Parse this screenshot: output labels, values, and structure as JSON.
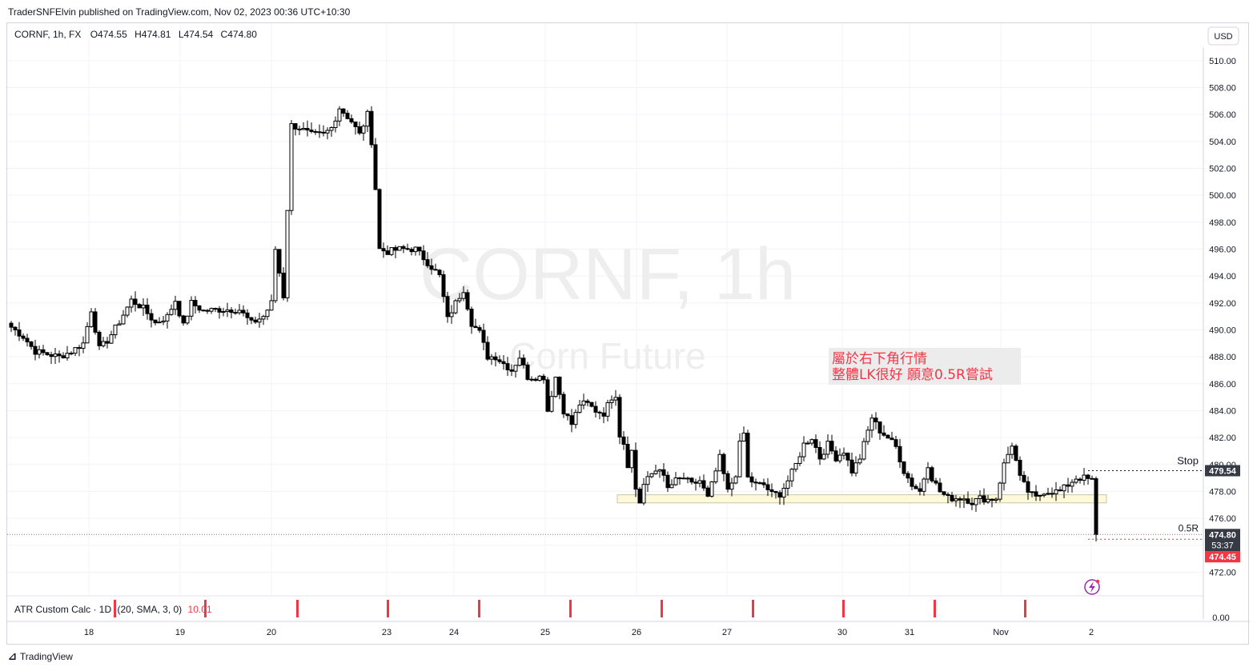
{
  "header": {
    "published": "TraderSNFElvin published on TradingView.com, Nov 02, 2023 00:36 UTC+10:30"
  },
  "footer": {
    "brand": "TradingView"
  },
  "legend": {
    "symbol": "CORNF, 1h, FX",
    "o_label": "O",
    "o": "474.55",
    "h_label": "H",
    "h": "474.81",
    "l_label": "L",
    "l": "474.54",
    "c_label": "C",
    "c": "474.80"
  },
  "watermark": {
    "title": "CORNF, 1h",
    "subtitle": "Corn Future"
  },
  "currency_button": "USD",
  "annotations": {
    "note_line1": "屬於右下角行情",
    "note_line2": "整體LK很好 願意0.5R嘗試",
    "stop_label": "Stop",
    "half_r_label": "0.5R"
  },
  "price_tags": {
    "stop": "479.54",
    "last": "474.80",
    "countdown": "53:37",
    "target": "474.45"
  },
  "indicator": {
    "name": "ATR Custom Calc · 1D",
    "params": "(20, SMA, 3, 0)",
    "value": "10.01",
    "axis_label": "0.00"
  },
  "colors": {
    "accent_red": "#f23645",
    "candle": "#000000",
    "zone_fill": "#fff9d9",
    "zone_border": "#c9c5a6",
    "note_text": "#f23645",
    "note_bg": "#ececec",
    "grid": "#f0f3fa",
    "watermark": "#eeeeee",
    "tag_dark": "#363a45",
    "flash_icon": "#9c27b0"
  },
  "chart_data": {
    "type": "candlestick",
    "symbol": "CORNF",
    "interval": "1h",
    "ylim": [
      470.6,
      511.0
    ],
    "y_ticks": [
      472,
      474,
      476,
      478,
      480,
      482,
      484,
      486,
      488,
      490,
      492,
      494,
      496,
      498,
      500,
      502,
      504,
      506,
      508,
      510
    ],
    "x_ticks": [
      "18",
      "19",
      "20",
      "23",
      "24",
      "25",
      "26",
      "27",
      "30",
      "31",
      "Nov",
      "2"
    ],
    "series": [
      {
        "name": "CORNF",
        "anchors": [
          [
            0,
            490.2
          ],
          [
            3,
            489.5
          ],
          [
            6,
            488.4
          ],
          [
            9,
            488.2
          ],
          [
            12,
            488.0
          ],
          [
            15,
            488.4
          ],
          [
            18,
            489.0
          ],
          [
            20,
            491.5
          ],
          [
            22,
            488.6
          ],
          [
            24,
            489.2
          ],
          [
            27,
            490.6
          ],
          [
            30,
            492.2
          ],
          [
            33,
            491.6
          ],
          [
            36,
            490.5
          ],
          [
            39,
            491.0
          ],
          [
            41,
            492.2
          ],
          [
            43,
            490.3
          ],
          [
            45,
            492.0
          ],
          [
            48,
            491.4
          ],
          [
            51,
            491.5
          ],
          [
            54,
            491.5
          ],
          [
            57,
            491.5
          ],
          [
            60,
            490.5
          ],
          [
            63,
            491.0
          ],
          [
            65,
            492.0
          ],
          [
            66,
            496.0
          ],
          [
            68,
            492.5
          ],
          [
            69,
            499.0
          ],
          [
            70,
            505.2
          ],
          [
            72,
            505.0
          ],
          [
            75,
            504.5
          ],
          [
            78,
            504.5
          ],
          [
            80,
            505.0
          ],
          [
            82,
            506.5
          ],
          [
            85,
            505.5
          ],
          [
            87,
            504.5
          ],
          [
            89,
            506.0
          ],
          [
            90,
            504.0
          ],
          [
            91,
            500.5
          ],
          [
            92,
            496.0
          ],
          [
            94,
            495.8
          ],
          [
            97,
            496.0
          ],
          [
            99,
            496.0
          ],
          [
            101,
            496.0
          ],
          [
            104,
            495.0
          ],
          [
            107,
            494.0
          ],
          [
            109,
            490.8
          ],
          [
            111,
            492.0
          ],
          [
            113,
            493.0
          ],
          [
            115,
            490.5
          ],
          [
            117,
            489.8
          ],
          [
            119,
            488.0
          ],
          [
            121,
            488.0
          ],
          [
            123,
            487.5
          ],
          [
            125,
            487.0
          ],
          [
            127,
            488.0
          ],
          [
            129,
            486.5
          ],
          [
            131,
            486.5
          ],
          [
            133,
            486.5
          ],
          [
            134,
            484.0
          ],
          [
            136,
            486.5
          ],
          [
            138,
            484.0
          ],
          [
            140,
            483.0
          ],
          [
            142,
            484.5
          ],
          [
            144,
            484.5
          ],
          [
            146,
            484.0
          ],
          [
            148,
            483.8
          ],
          [
            150,
            485.0
          ],
          [
            151,
            485.2
          ],
          [
            152,
            482.2
          ],
          [
            153,
            481.6
          ],
          [
            154,
            480.0
          ],
          [
            155,
            481.0
          ],
          [
            156,
            478.2
          ],
          [
            157,
            477.2
          ],
          [
            158,
            478.5
          ],
          [
            160,
            479.3
          ],
          [
            162,
            479.8
          ],
          [
            164,
            478.2
          ],
          [
            166,
            478.8
          ],
          [
            168,
            479.0
          ],
          [
            170,
            478.5
          ],
          [
            172,
            478.8
          ],
          [
            174,
            477.5
          ],
          [
            176,
            479.5
          ],
          [
            177,
            480.5
          ],
          [
            179,
            478.0
          ],
          [
            181,
            479.3
          ],
          [
            182,
            481.5
          ],
          [
            183,
            482.3
          ],
          [
            184,
            479.0
          ],
          [
            186,
            478.5
          ],
          [
            188,
            478.5
          ],
          [
            190,
            477.8
          ],
          [
            192,
            477.8
          ],
          [
            194,
            478.8
          ],
          [
            196,
            480.0
          ],
          [
            198,
            481.5
          ],
          [
            200,
            482.0
          ],
          [
            202,
            480.5
          ],
          [
            204,
            481.5
          ],
          [
            206,
            480.5
          ],
          [
            208,
            481.0
          ],
          [
            210,
            479.5
          ],
          [
            212,
            480.5
          ],
          [
            214,
            482.5
          ],
          [
            215,
            483.5
          ],
          [
            217,
            482.5
          ],
          [
            219,
            482.0
          ],
          [
            221,
            481.3
          ],
          [
            223,
            479.5
          ],
          [
            225,
            478.5
          ],
          [
            227,
            478.0
          ],
          [
            229,
            480.0
          ],
          [
            230,
            479.0
          ],
          [
            232,
            478.0
          ],
          [
            234,
            477.5
          ],
          [
            236,
            477.5
          ],
          [
            238,
            477.5
          ],
          [
            240,
            477.2
          ],
          [
            242,
            477.5
          ],
          [
            244,
            477.4
          ],
          [
            246,
            477.5
          ],
          [
            248,
            480.0
          ],
          [
            250,
            481.5
          ],
          [
            252,
            479.0
          ],
          [
            254,
            478.0
          ],
          [
            256,
            477.5
          ],
          [
            258,
            478.0
          ],
          [
            260,
            478.0
          ],
          [
            262,
            478.0
          ],
          [
            264,
            478.5
          ],
          [
            266,
            479.0
          ],
          [
            268,
            479.0
          ],
          [
            270,
            478.8
          ],
          [
            271,
            474.6
          ]
        ]
      }
    ],
    "last_candle": {
      "open": 474.55,
      "high": 474.81,
      "low": 474.54,
      "close": 474.8
    },
    "support_zone": [
      477.15,
      477.75
    ],
    "stop_level": 479.54,
    "target_level": 474.45,
    "last_price": 474.8,
    "indicator_series": {
      "name": "ATR Custom Calc · 1D",
      "value": 10.01
    }
  }
}
